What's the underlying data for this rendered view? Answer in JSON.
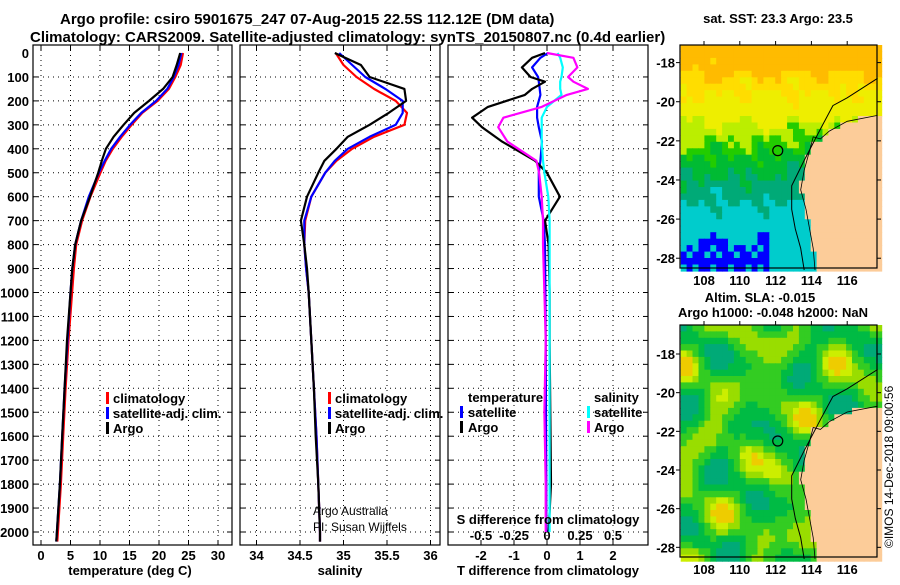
{
  "header": {
    "title_line1": "Argo profile: csiro 5901675_247 07-Aug-2015 22.5S 112.12E (DM data)",
    "title_line2": "Climatology: CARS2009. Satellite-adjusted climatology: synTS_20150807.nc (0.4d earlier)"
  },
  "credits": {
    "program": "Argo Australia",
    "pi": "PI: Susan Wijffels",
    "stamp": "©IMOS 14-Dec-2018 09:00:56"
  },
  "colors": {
    "climatology": "#ff0000",
    "satellite": "#0000ff",
    "argo": "#000000",
    "salinity_satellite": "#00ffff",
    "salinity_argo": "#ff00ff",
    "land": "#fccc99"
  },
  "chart_data": [
    {
      "type": "line",
      "id": "temperature",
      "xlabel": "temperature (deg C)",
      "ylabel": "",
      "xlim": [
        -1.4,
        32
      ],
      "ylim": [
        2055,
        0
      ],
      "xticks": [
        "0",
        "5",
        "10",
        "15",
        "20",
        "25",
        "30"
      ],
      "xtick_values": [
        0,
        5,
        10,
        15,
        20,
        25,
        30
      ],
      "yticks": [
        "0",
        "100",
        "200",
        "300",
        "400",
        "500",
        "600",
        "700",
        "800",
        "900",
        "1000",
        "1100",
        "1200",
        "1300",
        "1400",
        "1500",
        "1600",
        "1700",
        "1800",
        "1900",
        "2000"
      ],
      "grid": true,
      "legend": [
        "climatology",
        "satellite-adj. clim.",
        "Argo"
      ],
      "depth": [
        0,
        50,
        100,
        150,
        200,
        250,
        300,
        350,
        400,
        450,
        500,
        600,
        700,
        800,
        900,
        1000,
        1200,
        1400,
        1600,
        1800,
        2000,
        2040
      ],
      "series": [
        {
          "name": "climatology",
          "color": "#ff0000",
          "values": [
            23.9,
            23.5,
            22.6,
            21.5,
            19.6,
            17.0,
            15.2,
            13.5,
            12.0,
            10.8,
            9.9,
            8.2,
            6.8,
            5.8,
            5.4,
            5.1,
            4.5,
            4.0,
            3.6,
            3.2,
            2.7,
            2.6
          ]
        },
        {
          "name": "satellite-adj. clim.",
          "color": "#0000ff",
          "values": [
            23.8,
            23.3,
            22.5,
            21.4,
            19.5,
            17.0,
            15.1,
            13.4,
            11.9,
            10.8,
            9.8,
            8.1,
            6.8,
            5.8,
            5.3,
            5.0,
            4.5,
            4.0,
            3.6,
            3.2,
            2.7,
            2.6
          ]
        },
        {
          "name": "Argo",
          "color": "#000000",
          "values": [
            23.6,
            23.0,
            22.3,
            20.7,
            18.3,
            15.8,
            14.0,
            12.3,
            11.0,
            10.3,
            9.7,
            8.3,
            6.8,
            5.8,
            5.3,
            5.0,
            4.4,
            4.0,
            3.6,
            3.2,
            2.7,
            2.6
          ]
        }
      ]
    },
    {
      "type": "line",
      "id": "salinity",
      "xlabel": "salinity",
      "xlim": [
        33.81,
        36.11
      ],
      "ylim": [
        2055,
        0
      ],
      "xticks": [
        "34",
        "34.5",
        "35",
        "35.5",
        "36"
      ],
      "xtick_values": [
        34,
        34.5,
        35,
        35.5,
        36
      ],
      "grid": true,
      "legend": [
        "climatology",
        "satellite-adj. clim.",
        "Argo"
      ],
      "depth": [
        0,
        50,
        100,
        150,
        200,
        250,
        300,
        350,
        400,
        450,
        500,
        600,
        700,
        800,
        900,
        1000,
        1200,
        1400,
        1600,
        1800,
        2000,
        2040
      ],
      "series": [
        {
          "name": "climatology",
          "color": "#ff0000",
          "values": [
            34.91,
            35.0,
            35.15,
            35.35,
            35.6,
            35.73,
            35.7,
            35.35,
            35.1,
            34.92,
            34.79,
            34.63,
            34.56,
            34.55,
            34.57,
            34.6,
            34.63,
            34.66,
            34.69,
            34.71,
            34.73,
            34.73
          ]
        },
        {
          "name": "satellite-adj. clim.",
          "color": "#0000ff",
          "values": [
            34.95,
            35.1,
            35.25,
            35.48,
            35.68,
            35.68,
            35.6,
            35.3,
            35.05,
            34.9,
            34.79,
            34.63,
            34.55,
            34.55,
            34.57,
            34.6,
            34.63,
            34.66,
            34.69,
            34.71,
            34.73,
            34.73
          ]
        },
        {
          "name": "Argo",
          "color": "#000000",
          "values": [
            34.9,
            35.2,
            35.3,
            35.7,
            35.72,
            35.52,
            35.3,
            35.05,
            34.92,
            34.78,
            34.71,
            34.58,
            34.51,
            34.55,
            34.58,
            34.6,
            34.63,
            34.66,
            34.68,
            34.71,
            34.73,
            34.73
          ]
        }
      ]
    },
    {
      "type": "line",
      "id": "differences",
      "xlabel": "T difference from climatology",
      "x2label": "S difference from climatology",
      "xlim": [
        -3,
        3.06
      ],
      "x2lim": [
        -0.75,
        0.765
      ],
      "ylim": [
        2055,
        0
      ],
      "xticks": [
        "-2",
        "-1",
        "0",
        "1",
        "2"
      ],
      "xtick_values": [
        -2,
        -1,
        0,
        1,
        2
      ],
      "x2ticks": [
        "-0.5",
        "-0.25",
        "0",
        "0.25",
        "0.5"
      ],
      "x2tick_values": [
        -0.5,
        -0.25,
        0,
        0.25,
        0.5
      ],
      "grid": true,
      "legend_temperature_title": "temperature",
      "legend_salinity_title": "salinity",
      "legend_labels": [
        "satellite",
        "Argo",
        "satellite",
        "Argo"
      ],
      "depth": [
        0,
        20,
        60,
        100,
        120,
        150,
        175,
        225,
        270,
        310,
        370,
        450,
        500,
        600,
        700,
        800,
        1000,
        1200,
        1500,
        1800,
        2000
      ],
      "series": [
        {
          "name": "T satellite",
          "axis": "T",
          "color": "#0000ff",
          "values": [
            0.03,
            -0.2,
            -0.45,
            -0.27,
            -0.25,
            -0.22,
            -0.2,
            -0.3,
            -0.3,
            -0.25,
            -0.15,
            -0.2,
            -0.25,
            -0.25,
            -0.1,
            -0.06,
            -0.05,
            -0.04,
            -0.03,
            -0.02,
            -0.02
          ]
        },
        {
          "name": "T Argo",
          "axis": "T",
          "color": "#000000",
          "values": [
            -0.06,
            -0.45,
            -0.76,
            -0.5,
            -0.06,
            -0.45,
            -0.67,
            -1.79,
            -2.27,
            -1.97,
            -1.36,
            -0.36,
            0.0,
            0.39,
            -0.06,
            0.05,
            0.08,
            0.08,
            0.1,
            0.12,
            0.05
          ]
        },
        {
          "name": "S satellite",
          "axis": "S",
          "color": "#00ffff",
          "values": [
            0.08,
            0.1,
            0.12,
            0.11,
            0.1,
            0.1,
            0.11,
            0.0,
            -0.04,
            -0.04,
            -0.04,
            -0.03,
            -0.02,
            0.01,
            0.02,
            0.02,
            0.02,
            0.02,
            0.02,
            0.02,
            0.02
          ]
        },
        {
          "name": "S Argo",
          "axis": "S",
          "color": "#ff00ff",
          "values": [
            0.0,
            0.2,
            0.23,
            0.16,
            0.2,
            0.31,
            0.15,
            -0.04,
            -0.33,
            -0.37,
            -0.3,
            -0.08,
            -0.06,
            -0.04,
            -0.03,
            -0.03,
            -0.02,
            -0.01,
            -0.02,
            -0.01,
            -0.01
          ]
        }
      ]
    },
    {
      "type": "heatmap",
      "id": "sst_map",
      "title": "sat. SST: 23.3 Argo: 23.5",
      "xlim": [
        106.7,
        117.7
      ],
      "ylim": [
        -28.5,
        -17.1
      ],
      "xticks": [
        "108",
        "110",
        "112",
        "114",
        "116"
      ],
      "xtick_values": [
        108,
        110,
        112,
        114,
        116
      ],
      "yticks": [
        "-18",
        "-20",
        "-22",
        "-24",
        "-26",
        "-28"
      ],
      "ytick_values": [
        -18,
        -20,
        -22,
        -24,
        -26,
        -28
      ],
      "float_position": [
        112.12,
        -22.5
      ]
    },
    {
      "type": "heatmap",
      "id": "sla_map",
      "title": "Altim. SLA: -0.015",
      "subtitle": "Argo h1000: -0.048 h2000: NaN",
      "xlim": [
        106.7,
        117.7
      ],
      "ylim": [
        -28.5,
        -16.5
      ],
      "xticks": [
        "108",
        "110",
        "112",
        "114",
        "116"
      ],
      "xtick_values": [
        108,
        110,
        112,
        114,
        116
      ],
      "yticks": [
        "-18",
        "-20",
        "-22",
        "-24",
        "-26",
        "-28"
      ],
      "ytick_values": [
        -18,
        -20,
        -22,
        -24,
        -26,
        -28
      ],
      "float_position": [
        112.12,
        -22.5
      ]
    }
  ]
}
